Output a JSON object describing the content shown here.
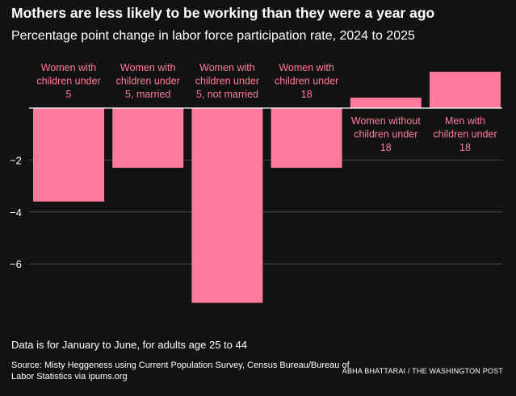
{
  "header": {
    "title": "Mothers are less likely to be working than they were a year ago",
    "subtitle": "Percentage point change in labor force participation rate, 2024 to 2025"
  },
  "footer": {
    "note": "Data is for January to June, for adults age 25 to 44",
    "source": "Source: Misty Heggeness using Current Population Survey, Census Bureau/Bureau of Labor Statistics via ipums.org",
    "credit": "ABHA BHATTARAI / THE WASHINGTON POST"
  },
  "colors": {
    "background": "#121212",
    "bar": "#ff7a9b",
    "label": "#ff7a9b",
    "gridline": "#4a4a4a",
    "axis": "#ffffff"
  },
  "chart_data": {
    "type": "bar",
    "categories": [
      [
        "Women with",
        "children under",
        "5"
      ],
      [
        "Women with",
        "children under",
        "5, married"
      ],
      [
        "Women with",
        "children under",
        "5, not married"
      ],
      [
        "Women with",
        "children under",
        "18"
      ],
      [
        "Women without",
        "children under",
        "18"
      ],
      [
        "Men with",
        "children under",
        "18"
      ]
    ],
    "values": [
      -3.6,
      -2.3,
      -7.5,
      -2.3,
      0.4,
      1.4
    ],
    "ylim": [
      -7.5,
      1.4
    ],
    "yticks": [
      -2,
      -4,
      -6
    ],
    "ytick_labels": [
      "−2",
      "−4",
      "−6"
    ],
    "grid": true,
    "title": "Mothers are less likely to be working than they were a year ago",
    "xlabel": "",
    "ylabel": ""
  }
}
